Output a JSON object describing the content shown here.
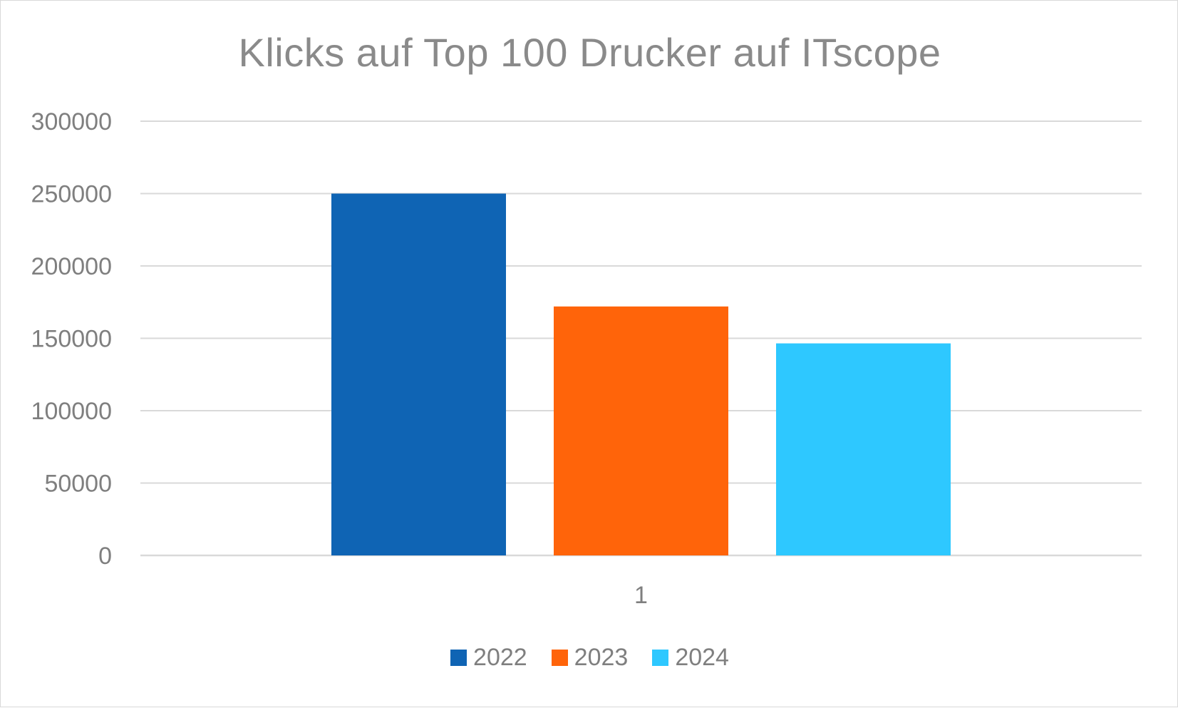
{
  "chart_data": {
    "type": "bar",
    "title": "Klicks auf Top 100 Drucker auf ITscope",
    "categories": [
      "1"
    ],
    "series": [
      {
        "name": "2022",
        "values": [
          250000
        ],
        "color": "#0f64b4"
      },
      {
        "name": "2023",
        "values": [
          172000
        ],
        "color": "#ff640a"
      },
      {
        "name": "2024",
        "values": [
          146500
        ],
        "color": "#2ec8ff"
      }
    ],
    "xlabel": "",
    "ylabel": "",
    "ylim": [
      0,
      300000
    ],
    "yticks": [
      "0",
      "50000",
      "100000",
      "150000",
      "200000",
      "250000",
      "300000"
    ],
    "grid": true,
    "legend_position": "bottom"
  },
  "colors": {
    "grid": "#d9d9d9",
    "text": "#7f7f7f",
    "title": "#8a8a8a"
  }
}
